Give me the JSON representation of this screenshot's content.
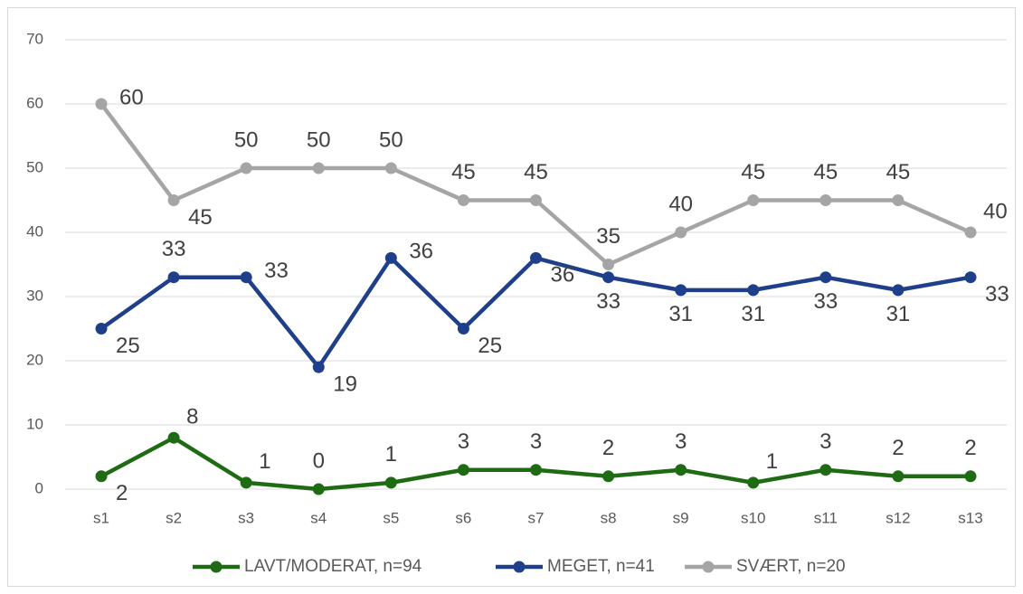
{
  "chart_data": {
    "type": "line",
    "categories": [
      "s1",
      "s2",
      "s3",
      "s4",
      "s5",
      "s6",
      "s7",
      "s8",
      "s9",
      "s10",
      "s11",
      "s12",
      "s13"
    ],
    "series": [
      {
        "name": "LAVT/MODERAT, n=94",
        "color": "#1e6b13",
        "values": [
          2,
          8,
          1,
          0,
          1,
          3,
          3,
          2,
          3,
          1,
          3,
          2,
          2
        ]
      },
      {
        "name": "MEGET, n=41",
        "color": "#1f3f8a",
        "values": [
          25,
          33,
          33,
          19,
          36,
          25,
          36,
          33,
          31,
          31,
          33,
          31,
          33
        ]
      },
      {
        "name": "SVÆRT, n=20",
        "color": "#a5a5a5",
        "values": [
          60,
          45,
          50,
          50,
          50,
          45,
          45,
          35,
          40,
          45,
          45,
          45,
          40
        ]
      }
    ],
    "ylim": [
      0,
      70
    ],
    "yticks": [
      0,
      10,
      20,
      30,
      40,
      50,
      60,
      70
    ],
    "grid": true,
    "legend": "bottom"
  }
}
